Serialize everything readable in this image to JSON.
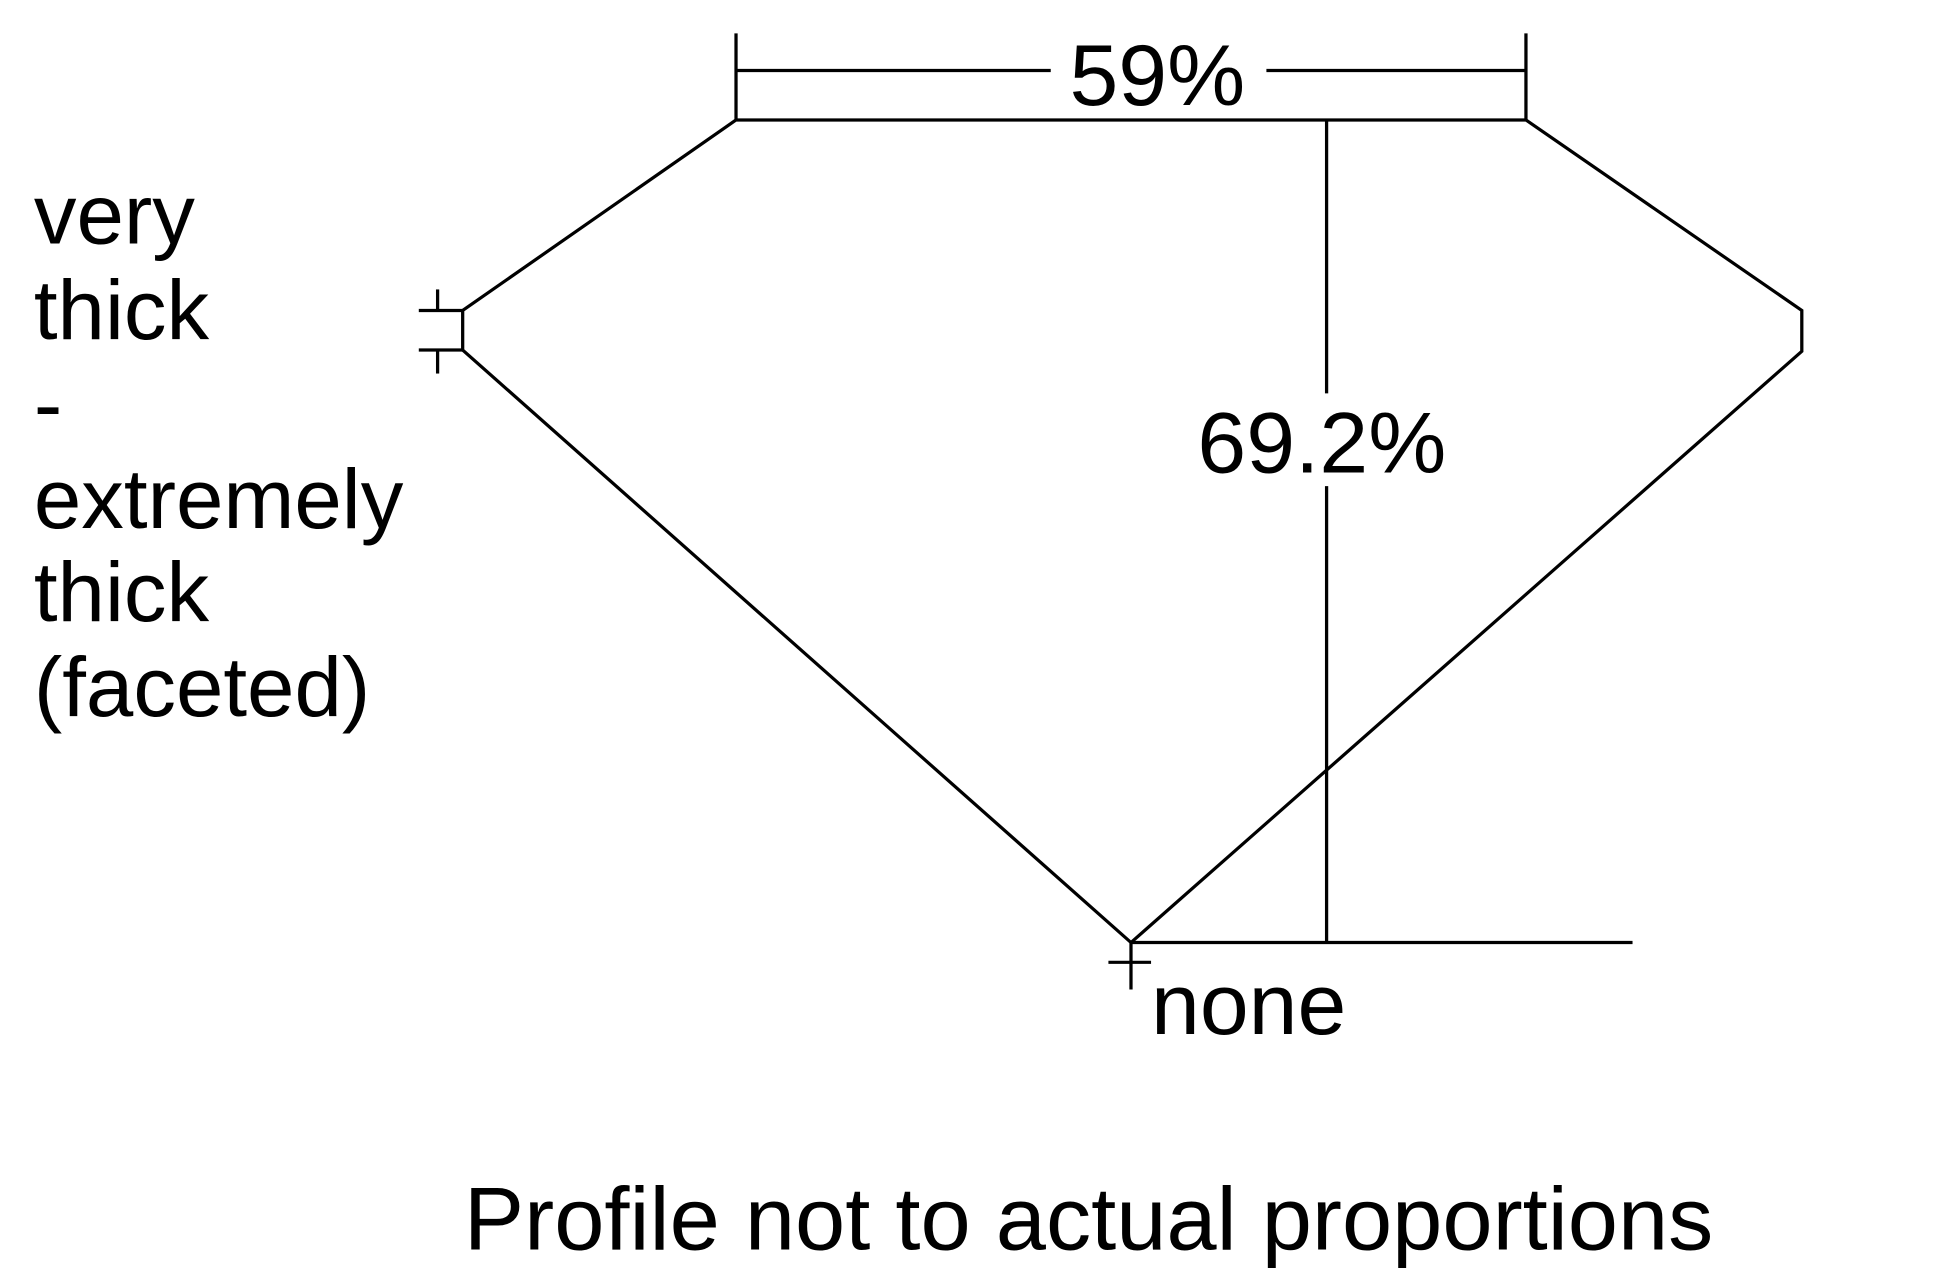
{
  "diagram": {
    "table_label": "59%",
    "depth_label": "69.2%",
    "culet_label": "none",
    "girdle_label_lines": [
      "very",
      "thick",
      "-",
      "extremely",
      "thick",
      "(faceted)"
    ],
    "caption": "Profile not to actual proportions",
    "line_color": "#000000",
    "background": "#ffffff"
  }
}
